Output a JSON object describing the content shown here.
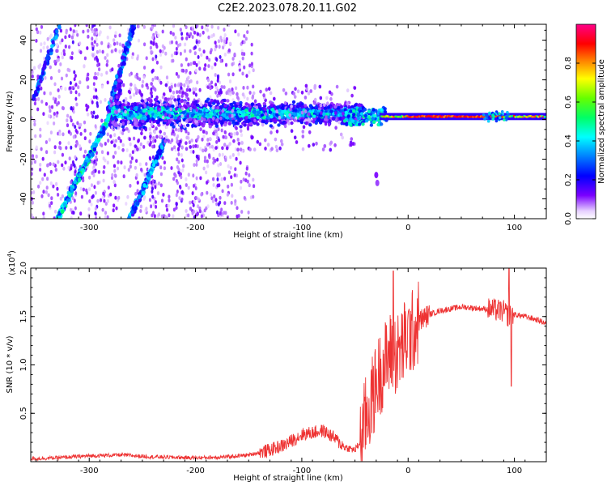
{
  "title": "C2E2.2023.078.20.11.G02",
  "chart_data": [
    {
      "type": "heatmap",
      "xlabel": "Height of straight line (km)",
      "ylabel": "Frequency (Hz)",
      "xlim": [
        -355,
        130
      ],
      "ylim": [
        -50,
        48
      ],
      "xticks": [
        -300,
        -200,
        -100,
        0,
        100
      ],
      "yticks": [
        -40,
        -20,
        0,
        20,
        40
      ],
      "colorbar": {
        "label": "Normalized spectral amplitude",
        "range": [
          0.0,
          1.0
        ],
        "ticks": [
          "0.0",
          "0.2",
          "0.4",
          "0.6",
          "0.8"
        ],
        "colors": [
          "#ffffff",
          "#7a00ff",
          "#0000ff",
          "#00ffff",
          "#00ff00",
          "#ffff00",
          "#ff0000",
          "#ff00ff"
        ]
      },
      "features": [
        {
          "name": "",
          "x_range": [
            -330,
            -280
          ],
          "freq_range": [
            -48,
            2
          ],
          "amplitude": 0.35
        },
        {
          "name": "",
          "x_range": [
            -282,
            -260
          ],
          "freq_range": [
            2,
            48
          ],
          "amplitude": 0.25
        },
        {
          "name": "",
          "x_range": [
            -258,
            -230
          ],
          "freq_range": [
            -48,
            -12
          ],
          "amplitude": 0.3
        },
        {
          "name": "",
          "x_range": [
            -350,
            -330
          ],
          "freq_range": [
            15,
            48
          ],
          "amplitude": 0.3
        },
        {
          "name": "",
          "x_range": [
            -275,
            -60
          ],
          "freq_center": 3,
          "freq_width": 14,
          "amplitude": 0.3
        },
        {
          "name": "",
          "x_range": [
            -25,
            130
          ],
          "freq_center": 1.5,
          "freq_width": 2,
          "amplitude": 0.85
        }
      ]
    },
    {
      "type": "line",
      "xlabel": "Height of straight line (km)",
      "ylabel": "SNR (10 * v/v)",
      "y_multiplier": "(x10",
      "y_multiplier_exp": "4",
      "y_multiplier_close": ")",
      "xlim": [
        -355,
        130
      ],
      "ylim": [
        0,
        2.0
      ],
      "xticks": [
        -300,
        -200,
        -100,
        0,
        100
      ],
      "yticks": [
        "0.5",
        "1.0",
        "1.5",
        "2.0"
      ],
      "color": "#ee3333",
      "series": [
        {
          "x": [
            -355,
            -330,
            -300,
            -270,
            -240,
            -200,
            -170,
            -150,
            -130,
            -115,
            -100,
            -90,
            -80,
            -70,
            -60,
            -50,
            -45,
            -40,
            -35,
            -30,
            -25,
            -20,
            -15,
            -10,
            -5,
            0,
            5,
            10,
            20,
            30,
            40,
            50,
            60,
            70,
            80,
            90,
            95,
            100,
            110,
            120,
            130
          ],
          "y": [
            0.03,
            0.04,
            0.06,
            0.07,
            0.05,
            0.04,
            0.05,
            0.07,
            0.12,
            0.18,
            0.28,
            0.3,
            0.32,
            0.25,
            0.15,
            0.12,
            0.2,
            0.45,
            0.6,
            0.8,
            0.95,
            1.05,
            1.15,
            1.1,
            1.2,
            1.3,
            1.35,
            1.45,
            1.52,
            1.56,
            1.58,
            1.6,
            1.59,
            1.58,
            1.57,
            1.55,
            1.5,
            1.52,
            1.5,
            1.47,
            1.43
          ]
        }
      ]
    }
  ]
}
